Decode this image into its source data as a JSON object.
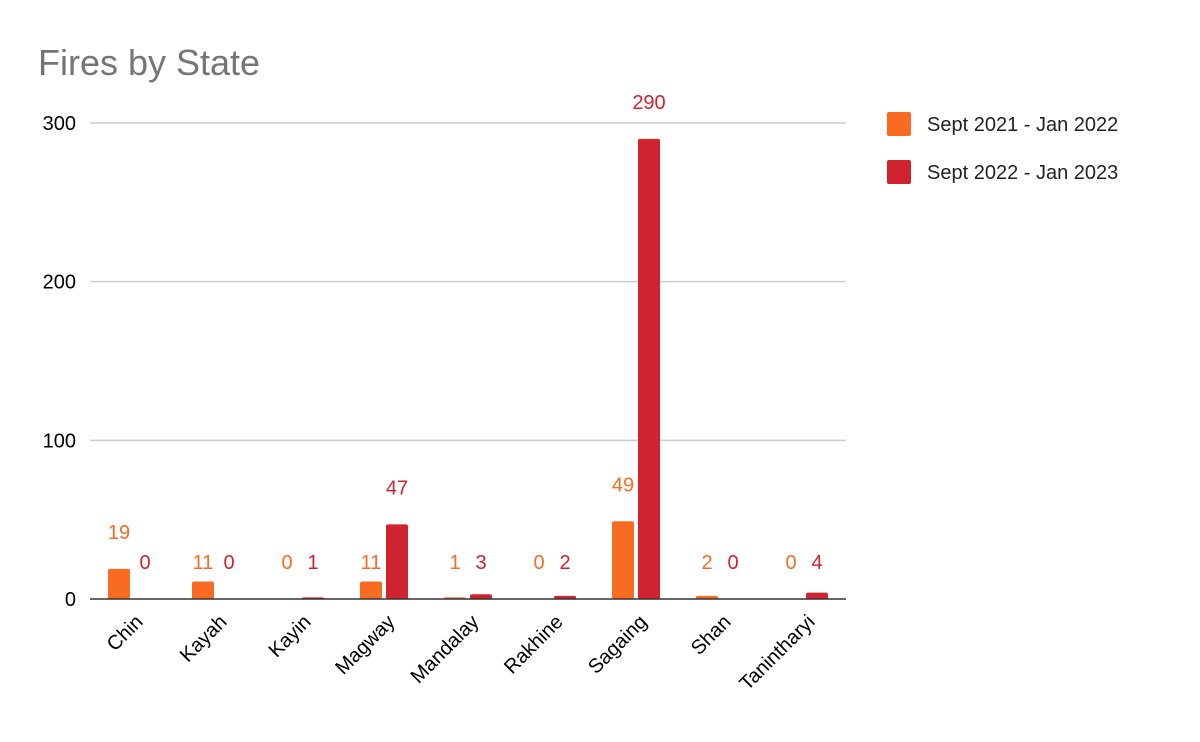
{
  "chart_data": {
    "type": "bar",
    "title": "Fires by State",
    "categories": [
      "Chin",
      "Kayah",
      "Kayin",
      "Magway",
      "Mandalay",
      "Rakhine",
      "Sagaing",
      "Shan",
      "Tanintharyi"
    ],
    "series": [
      {
        "name": "Sept 2021 - Jan 2022",
        "color": "#f76b22",
        "values": [
          19,
          11,
          0,
          11,
          1,
          0,
          49,
          2,
          0
        ]
      },
      {
        "name": "Sept 2022 - Jan 2023",
        "color": "#d0232f",
        "values": [
          0,
          0,
          1,
          47,
          3,
          2,
          290,
          0,
          4
        ]
      }
    ],
    "yticks": [
      0,
      100,
      200,
      300
    ],
    "ylim": [
      0,
      300
    ],
    "grid": true,
    "legend_position": "right",
    "data_labels": true
  }
}
